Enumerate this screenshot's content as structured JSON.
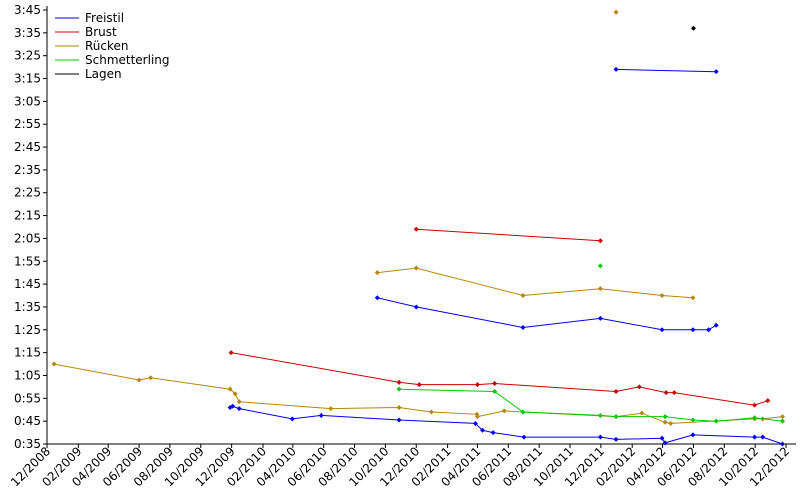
{
  "chart_data": {
    "type": "line",
    "title": "",
    "xlabel": "",
    "ylabel": "",
    "legend_position": "top-left",
    "grid": false,
    "xlim": [
      "2008-12-01",
      "2012-12-01"
    ],
    "ylim": [
      "0:35",
      "3:45"
    ],
    "x_ticks": [
      "12/2008",
      "02/2009",
      "04/2009",
      "06/2009",
      "08/2009",
      "10/2009",
      "12/2009",
      "02/2010",
      "04/2010",
      "06/2010",
      "08/2010",
      "10/2010",
      "12/2010",
      "02/2011",
      "04/2011",
      "06/2011",
      "08/2011",
      "10/2011",
      "12/2011",
      "02/2012",
      "04/2012",
      "06/2012",
      "08/2012",
      "10/2012",
      "12/2012"
    ],
    "y_ticks": [
      "0:35",
      "0:45",
      "0:55",
      "1:05",
      "1:15",
      "1:25",
      "1:35",
      "1:45",
      "1:55",
      "2:05",
      "2:15",
      "2:25",
      "2:35",
      "2:45",
      "2:55",
      "3:05",
      "3:15",
      "3:25",
      "3:35",
      "3:45"
    ],
    "series": [
      {
        "name": "Freistil",
        "color": "#0000ff",
        "segments": [
          [
            [
              "2009-11-28",
              "0:51"
            ],
            [
              "2009-12-03",
              "0:51.5"
            ],
            [
              "2009-12-16",
              "0:50.5"
            ],
            [
              "2010-03-31",
              "0:46"
            ],
            [
              "2010-05-27",
              "0:47.5"
            ],
            [
              "2010-10-28",
              "0:45.5"
            ],
            [
              "2011-03-28",
              "0:44"
            ],
            [
              "2011-04-11",
              "0:41"
            ],
            [
              "2011-05-02",
              "0:40"
            ],
            [
              "2011-07-02",
              "0:38"
            ],
            [
              "2011-11-30",
              "0:38"
            ],
            [
              "2011-12-31",
              "0:37"
            ],
            [
              "2012-03-31",
              "0:37.5"
            ],
            [
              "2012-04-06",
              "0:35.5"
            ],
            [
              "2012-05-31",
              "0:39"
            ],
            [
              "2012-09-30",
              "0:38"
            ],
            [
              "2012-10-16",
              "0:38"
            ],
            [
              "2012-11-24",
              "0:35"
            ]
          ],
          [
            [
              "2010-09-15",
              "1:39"
            ],
            [
              "2010-12-01",
              "1:35"
            ],
            [
              "2011-06-30",
              "1:26"
            ],
            [
              "2011-11-30",
              "1:30"
            ],
            [
              "2012-03-31",
              "1:25"
            ],
            [
              "2012-05-31",
              "1:25"
            ],
            [
              "2012-07-01",
              "1:25"
            ],
            [
              "2012-07-16",
              "1:27"
            ]
          ],
          [
            [
              "2011-12-31",
              "3:19"
            ],
            [
              "2012-07-16",
              "3:18"
            ]
          ]
        ]
      },
      {
        "name": "Brust",
        "color": "#cc0000",
        "segments": [
          [
            [
              "2009-11-30",
              "1:15"
            ],
            [
              "2010-10-28",
              "1:02"
            ],
            [
              "2010-12-07",
              "1:01"
            ],
            [
              "2011-04-01",
              "1:01"
            ],
            [
              "2011-05-05",
              "1:01.5"
            ],
            [
              "2011-12-31",
              "0:58"
            ],
            [
              "2012-02-15",
              "1:00"
            ],
            [
              "2012-04-08",
              "0:57.5"
            ],
            [
              "2012-04-24",
              "0:57.5"
            ],
            [
              "2012-09-30",
              "0:52"
            ],
            [
              "2012-10-26",
              "0:54"
            ]
          ],
          [
            [
              "2010-12-01",
              "2:09"
            ],
            [
              "2011-11-30",
              "2:04"
            ]
          ]
        ]
      },
      {
        "name": "Rücken",
        "color": "#b8860b",
        "segments": [
          [
            [
              "2008-12-15",
              "1:10"
            ],
            [
              "2009-06-01",
              "1:03"
            ],
            [
              "2009-06-24",
              "1:04"
            ],
            [
              "2009-11-28",
              "0:59"
            ],
            [
              "2009-12-08",
              "0:57"
            ],
            [
              "2009-12-16",
              "0:53.5"
            ],
            [
              "2010-06-15",
              "0:50.5"
            ],
            [
              "2010-10-28",
              "0:51"
            ],
            [
              "2010-12-31",
              "0:49"
            ],
            [
              "2011-03-31",
              "0:48"
            ],
            [
              "2011-04-01",
              "0:47"
            ],
            [
              "2011-05-24",
              "0:49.5"
            ],
            [
              "2011-06-30",
              "0:49"
            ],
            [
              "2011-12-31",
              "0:47"
            ],
            [
              "2012-02-20",
              "0:48.5"
            ],
            [
              "2012-04-06",
              "0:44.5"
            ],
            [
              "2012-04-17",
              "0:44"
            ],
            [
              "2012-09-30",
              "0:46"
            ],
            [
              "2012-10-16",
              "0:46"
            ],
            [
              "2012-11-24",
              "0:47"
            ]
          ],
          [
            [
              "2010-09-15",
              "1:50"
            ],
            [
              "2010-12-01",
              "1:52"
            ],
            [
              "2011-06-30",
              "1:40"
            ],
            [
              "2011-11-30",
              "1:43"
            ],
            [
              "2012-03-31",
              "1:40"
            ],
            [
              "2012-05-31",
              "1:39"
            ]
          ],
          [
            [
              "2011-12-31",
              "3:44"
            ]
          ]
        ]
      },
      {
        "name": "Schmetterling",
        "color": "#00cc00",
        "segments": [
          [
            [
              "2010-10-28",
              "0:59"
            ],
            [
              "2011-05-05",
              "0:58"
            ],
            [
              "2011-06-30",
              "0:49"
            ],
            [
              "2011-11-30",
              "0:47.5"
            ],
            [
              "2011-12-31",
              "0:47"
            ],
            [
              "2012-04-06",
              "0:47"
            ],
            [
              "2012-05-31",
              "0:45.5"
            ],
            [
              "2012-07-16",
              "0:45"
            ],
            [
              "2012-09-30",
              "0:46.5"
            ],
            [
              "2012-11-24",
              "0:45"
            ]
          ],
          [
            [
              "2011-11-30",
              "1:53"
            ]
          ]
        ]
      },
      {
        "name": "Lagen",
        "color": "#000000",
        "segments": [
          [
            [
              "2012-06-01",
              "3:37"
            ]
          ]
        ]
      }
    ]
  }
}
